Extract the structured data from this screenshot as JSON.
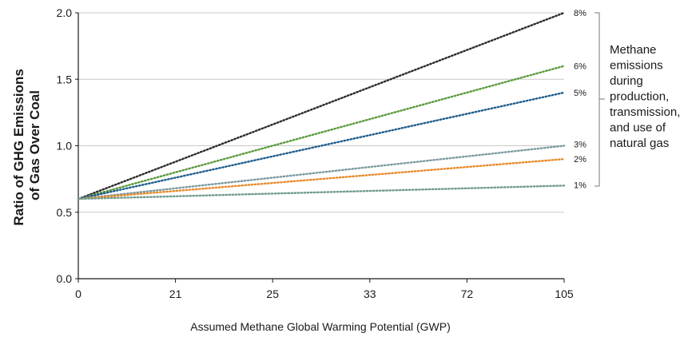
{
  "chart_data": {
    "type": "line",
    "ylabel_lines": [
      "Ratio of GHG Emissions",
      "of Gas Over Coal"
    ],
    "xlabel": "Assumed Methane Global Warming Potential (GWP)",
    "categories": [
      "0",
      "21",
      "25",
      "33",
      "72",
      "105"
    ],
    "y_ticks": [
      "0.0",
      "0.5",
      "1.0",
      "1.5",
      "2.0"
    ],
    "ylim": [
      0,
      2.0
    ],
    "grid": true,
    "line_style": "dotted",
    "series": [
      {
        "name": "8%",
        "color": "#2a2a2a",
        "values": [
          0.6,
          0.88,
          1.16,
          1.44,
          1.72,
          2.0
        ]
      },
      {
        "name": "6%",
        "color": "#5a9a3c",
        "values": [
          0.6,
          0.8,
          1.0,
          1.2,
          1.4,
          1.6
        ]
      },
      {
        "name": "5%",
        "color": "#1f5d8c",
        "values": [
          0.6,
          0.76,
          0.92,
          1.08,
          1.24,
          1.4
        ]
      },
      {
        "name": "3%",
        "color": "#7a9aa0",
        "values": [
          0.6,
          0.68,
          0.76,
          0.84,
          0.92,
          1.0
        ]
      },
      {
        "name": "2%",
        "color": "#e88a2a",
        "values": [
          0.6,
          0.66,
          0.72,
          0.78,
          0.84,
          0.9
        ]
      },
      {
        "name": "1%",
        "color": "#6f9a8c",
        "values": [
          0.6,
          0.62,
          0.64,
          0.66,
          0.68,
          0.7
        ]
      }
    ],
    "bracket_note_lines": [
      "Methane",
      "emissions",
      "during",
      "production,",
      "transmission,",
      "and use of",
      "natural gas"
    ]
  }
}
